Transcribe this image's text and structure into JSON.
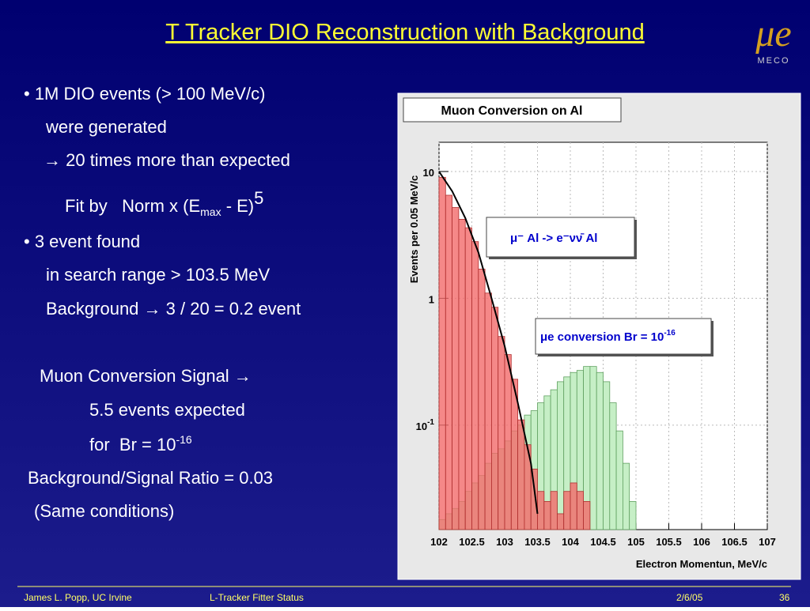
{
  "header": {
    "title": "T Tracker DIO Reconstruction with Background"
  },
  "logo": {
    "symbol": "μe",
    "text": "MECO"
  },
  "body": {
    "lines": [
      "• 1M DIO events (> 100 MeV/c)",
      "were generated",
      "→ 20 times more than expected",
      "• 3 event found",
      "in search range > 103.5 MeV",
      "Background → 3 / 20 = 0.2 event",
      "Muon Conversion Signal →",
      "5.5 events expected",
      "Background/Signal Ratio  = 0.03",
      "(Same conditions)"
    ],
    "fit": {
      "text": "Fit by   Norm x (E",
      "sub": "max",
      "tail": " - E)",
      "sup": "5"
    },
    "br": {
      "text": "for  Br = 10",
      "sup": "-16"
    }
  },
  "chart_data": {
    "type": "histogram",
    "title": "Muon Conversion on Al",
    "x_label": "Electron Momentun, MeV/c",
    "y_label": "Events per 0.05 MeV/c",
    "log_y": true,
    "grid": true,
    "bins": [
      102.0,
      102.1,
      102.2,
      102.3,
      102.4,
      102.5,
      102.6,
      102.7,
      102.8,
      102.9,
      103.0,
      103.1,
      103.2,
      103.3,
      103.4,
      103.5,
      103.6,
      103.7,
      103.8,
      103.9,
      104.0,
      104.1,
      104.2,
      104.3,
      104.4,
      104.5,
      104.6,
      104.7,
      104.8,
      104.9,
      105.0
    ],
    "series": [
      {
        "color": "#f26a6a",
        "values": [
          9,
          6.5,
          5.2,
          4.2,
          3.6,
          2.8,
          1.7,
          1.1,
          0.85,
          0.5,
          0.36,
          0.23,
          0.11,
          0.07,
          0.045,
          0.03,
          0.025,
          0.03,
          0.02,
          0.03,
          0.035,
          0.03,
          0.025,
          null,
          null,
          null,
          null,
          null,
          null,
          null
        ]
      },
      {
        "color": "#c6efc6",
        "values": [
          0.018,
          0.02,
          0.022,
          0.025,
          0.03,
          0.035,
          0.04,
          0.05,
          0.06,
          0.065,
          0.075,
          0.09,
          0.1,
          0.12,
          0.13,
          0.15,
          0.17,
          0.19,
          0.22,
          0.24,
          0.26,
          0.27,
          0.29,
          0.29,
          0.26,
          0.22,
          0.15,
          0.09,
          0.05,
          0.025
        ]
      }
    ],
    "curve": {
      "color": "#000000",
      "x": [
        102.0,
        102.2,
        102.4,
        102.6,
        102.8,
        103.0,
        103.2,
        103.4,
        103.5
      ],
      "values": [
        10,
        7,
        4.3,
        2.3,
        1.0,
        0.42,
        0.15,
        0.05,
        0.02
      ]
    },
    "annotations": [
      {
        "text": "μ⁻ Al -> e⁻νν̄ Al"
      },
      {
        "text": "μe conversion Br = 10",
        "sup": "-16"
      }
    ],
    "xlim": [
      102,
      107
    ],
    "xticks": [
      102,
      102.5,
      103,
      103.5,
      104,
      104.5,
      105,
      105.5,
      106,
      106.5,
      107
    ],
    "ylim": [
      0.015,
      17
    ],
    "yticks": [
      {
        "value": 0.1,
        "label": "10",
        "sup": "-1"
      },
      1,
      10
    ]
  },
  "footer": {
    "author": "James L. Popp, UC Irvine",
    "subject": "L-Tracker Fitter Status",
    "date": "2/6/05",
    "page": "36"
  }
}
